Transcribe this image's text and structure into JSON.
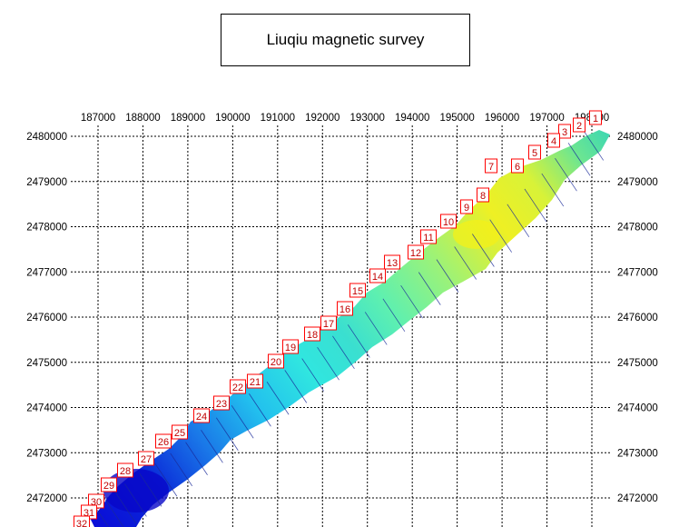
{
  "title": "Liuqiu magnetic survey",
  "x_ticks": [
    "187000",
    "188000",
    "189000",
    "190000",
    "191000",
    "192000",
    "193000",
    "194000",
    "195000",
    "196000",
    "197000",
    "198000"
  ],
  "x_tick_values": [
    187000,
    188000,
    189000,
    190000,
    191000,
    192000,
    193000,
    194000,
    195000,
    196000,
    197000,
    198000
  ],
  "y_ticks": [
    "2480000",
    "2479000",
    "2478000",
    "2477000",
    "2476000",
    "2475000",
    "2474000",
    "2473000",
    "2472000"
  ],
  "y_tick_values": [
    2480000,
    2479000,
    2478000,
    2477000,
    2476000,
    2475000,
    2474000,
    2473000,
    2472000
  ],
  "x_range": [
    186540,
    198600
  ],
  "y_range": [
    2471440,
    2480120
  ],
  "line_labels": [
    "1",
    "2",
    "3",
    "4",
    "5",
    "6",
    "7",
    "8",
    "9",
    "10",
    "11",
    "12",
    "13",
    "14",
    "15",
    "16",
    "17",
    "18",
    "19",
    "20",
    "21",
    "22",
    "23",
    "24",
    "25",
    "26",
    "27",
    "28",
    "29",
    "30",
    "31",
    "32"
  ],
  "label_color": "#ff0000",
  "grid": true,
  "colormap": [
    "#0a14d0",
    "#1e7be6",
    "#24d8e8",
    "#8ff0a0",
    "#d6f23c",
    "#f4f020"
  ]
}
